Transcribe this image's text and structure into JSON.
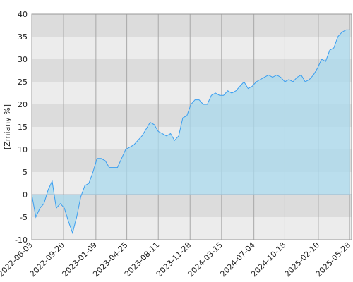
{
  "chart_data": {
    "type": "area",
    "y_label": "[Zmiany %]",
    "x": [
      "2022-06-03",
      "2022-06-17",
      "2022-07-01",
      "2022-07-15",
      "2022-07-29",
      "2022-08-12",
      "2022-08-26",
      "2022-09-09",
      "2022-09-23",
      "2022-10-07",
      "2022-10-21",
      "2022-11-04",
      "2022-11-18",
      "2022-12-02",
      "2022-12-16",
      "2022-12-30",
      "2023-01-13",
      "2023-01-27",
      "2023-02-10",
      "2023-02-24",
      "2023-03-10",
      "2023-03-24",
      "2023-04-07",
      "2023-04-21",
      "2023-05-05",
      "2023-05-19",
      "2023-06-02",
      "2023-06-16",
      "2023-06-30",
      "2023-07-14",
      "2023-07-28",
      "2023-08-11",
      "2023-08-25",
      "2023-09-08",
      "2023-09-22",
      "2023-10-06",
      "2023-10-20",
      "2023-11-03",
      "2023-11-17",
      "2023-12-01",
      "2023-12-15",
      "2023-12-29",
      "2024-01-12",
      "2024-01-26",
      "2024-02-09",
      "2024-02-23",
      "2024-03-08",
      "2024-03-22",
      "2024-04-05",
      "2024-04-19",
      "2024-05-03",
      "2024-05-17",
      "2024-05-31",
      "2024-06-14",
      "2024-06-28",
      "2024-07-12",
      "2024-07-26",
      "2024-08-09",
      "2024-08-23",
      "2024-09-06",
      "2024-09-20",
      "2024-10-04",
      "2024-10-18",
      "2024-11-01",
      "2024-11-15",
      "2024-11-29",
      "2024-12-13",
      "2024-12-27",
      "2025-01-10",
      "2025-01-24",
      "2025-02-07",
      "2025-02-21",
      "2025-03-07",
      "2025-03-21",
      "2025-04-04",
      "2025-04-18",
      "2025-05-02",
      "2025-05-16",
      "2025-05-30"
    ],
    "values": [
      0,
      -5,
      -3,
      -2,
      1,
      3,
      -3,
      -2,
      -3,
      -6,
      -8.5,
      -5,
      -0.5,
      2,
      2.5,
      5,
      8,
      8,
      7.5,
      6,
      6,
      6,
      8,
      10,
      10.5,
      11,
      12,
      13,
      14.5,
      16,
      15.5,
      14,
      13.5,
      13,
      13.5,
      12,
      13,
      17,
      17.5,
      20,
      21,
      21,
      20,
      20,
      22,
      22.5,
      22,
      22,
      23,
      22.5,
      23,
      24,
      25,
      23.5,
      24,
      25,
      25.5,
      26,
      26.5,
      26,
      26.5,
      26,
      25,
      25.5,
      25,
      26,
      26.5,
      25,
      25.5,
      26.5,
      28,
      30,
      29.5,
      32,
      32.5,
      35,
      36,
      36.5,
      36.5
    ],
    "color": "#3a9ef0",
    "fill_color": "#a9d9ee",
    "xlim": [
      "2022-06-03",
      "2025-06-04"
    ],
    "xticks": [
      "2022-06-03",
      "2022-09-20",
      "2023-01-09",
      "2023-04-25",
      "2023-08-11",
      "2023-11-28",
      "2024-03-15",
      "2024-07-04",
      "2024-10-18",
      "2025-02-10",
      "2025-05-28"
    ],
    "ylim": [
      -10,
      40
    ],
    "yticks": [
      -10,
      -5,
      0,
      5,
      10,
      15,
      20,
      25,
      30,
      35,
      40
    ],
    "grid": true
  }
}
